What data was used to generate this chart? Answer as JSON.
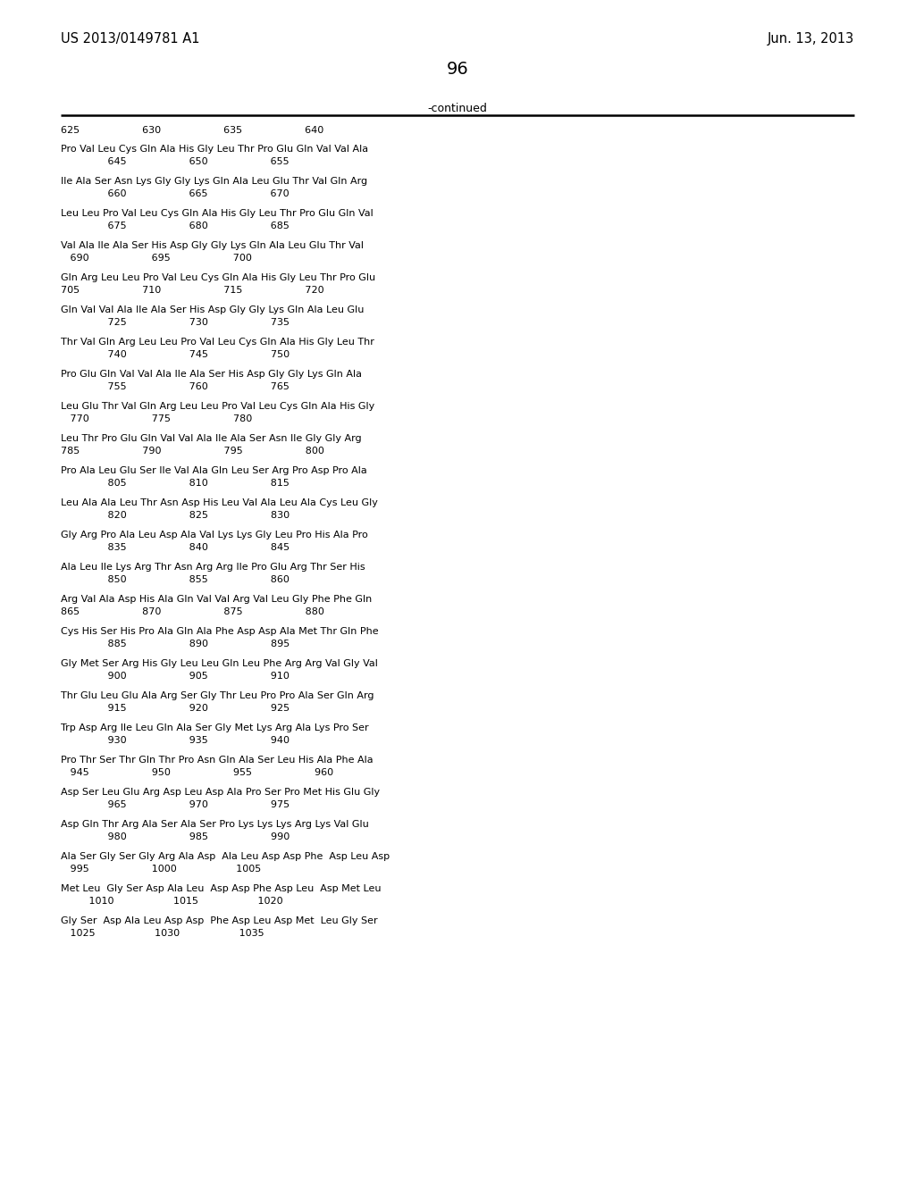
{
  "background_color": "#ffffff",
  "patent_number": "US 2013/0149781 A1",
  "date": "Jun. 13, 2013",
  "page_number": "96",
  "continued_label": "-continued",
  "number_line": "625                    630                    635                    640",
  "sequence_blocks": [
    [
      "Pro Val Leu Cys Gln Ala His Gly Leu Thr Pro Glu Gln Val Val Ala",
      "               645                    650                    655"
    ],
    [
      "Ile Ala Ser Asn Lys Gly Gly Lys Gln Ala Leu Glu Thr Val Gln Arg",
      "               660                    665                    670"
    ],
    [
      "Leu Leu Pro Val Leu Cys Gln Ala His Gly Leu Thr Pro Glu Gln Val",
      "               675                    680                    685"
    ],
    [
      "Val Ala Ile Ala Ser His Asp Gly Gly Lys Gln Ala Leu Glu Thr Val",
      "   690                    695                    700"
    ],
    [
      "Gln Arg Leu Leu Pro Val Leu Cys Gln Ala His Gly Leu Thr Pro Glu",
      "705                    710                    715                    720"
    ],
    [
      "Gln Val Val Ala Ile Ala Ser His Asp Gly Gly Lys Gln Ala Leu Glu",
      "               725                    730                    735"
    ],
    [
      "Thr Val Gln Arg Leu Leu Pro Val Leu Cys Gln Ala His Gly Leu Thr",
      "               740                    745                    750"
    ],
    [
      "Pro Glu Gln Val Val Ala Ile Ala Ser His Asp Gly Gly Lys Gln Ala",
      "               755                    760                    765"
    ],
    [
      "Leu Glu Thr Val Gln Arg Leu Leu Pro Val Leu Cys Gln Ala His Gly",
      "   770                    775                    780"
    ],
    [
      "Leu Thr Pro Glu Gln Val Val Ala Ile Ala Ser Asn Ile Gly Gly Arg",
      "785                    790                    795                    800"
    ],
    [
      "Pro Ala Leu Glu Ser Ile Val Ala Gln Leu Ser Arg Pro Asp Pro Ala",
      "               805                    810                    815"
    ],
    [
      "Leu Ala Ala Leu Thr Asn Asp His Leu Val Ala Leu Ala Cys Leu Gly",
      "               820                    825                    830"
    ],
    [
      "Gly Arg Pro Ala Leu Asp Ala Val Lys Lys Gly Leu Pro His Ala Pro",
      "               835                    840                    845"
    ],
    [
      "Ala Leu Ile Lys Arg Thr Asn Arg Arg Ile Pro Glu Arg Thr Ser His",
      "               850                    855                    860"
    ],
    [
      "Arg Val Ala Asp His Ala Gln Val Val Arg Val Leu Gly Phe Phe Gln",
      "865                    870                    875                    880"
    ],
    [
      "Cys His Ser His Pro Ala Gln Ala Phe Asp Asp Ala Met Thr Gln Phe",
      "               885                    890                    895"
    ],
    [
      "Gly Met Ser Arg His Gly Leu Leu Gln Leu Phe Arg Arg Val Gly Val",
      "               900                    905                    910"
    ],
    [
      "Thr Glu Leu Glu Ala Arg Ser Gly Thr Leu Pro Pro Ala Ser Gln Arg",
      "               915                    920                    925"
    ],
    [
      "Trp Asp Arg Ile Leu Gln Ala Ser Gly Met Lys Arg Ala Lys Pro Ser",
      "               930                    935                    940"
    ],
    [
      "Pro Thr Ser Thr Gln Thr Pro Asn Gln Ala Ser Leu His Ala Phe Ala",
      "   945                    950                    955                    960"
    ],
    [
      "Asp Ser Leu Glu Arg Asp Leu Asp Ala Pro Ser Pro Met His Glu Gly",
      "               965                    970                    975"
    ],
    [
      "Asp Gln Thr Arg Ala Ser Ala Ser Pro Lys Lys Lys Arg Lys Val Glu",
      "               980                    985                    990"
    ],
    [
      "Ala Ser Gly Ser Gly Arg Ala Asp  Ala Leu Asp Asp Phe  Asp Leu Asp",
      "   995                    1000                   1005"
    ],
    [
      "Met Leu  Gly Ser Asp Ala Leu  Asp Asp Phe Asp Leu  Asp Met Leu",
      "         1010                   1015                   1020"
    ],
    [
      "Gly Ser  Asp Ala Leu Asp Asp  Phe Asp Leu Asp Met  Leu Gly Ser",
      "   1025                   1030                   1035"
    ]
  ]
}
